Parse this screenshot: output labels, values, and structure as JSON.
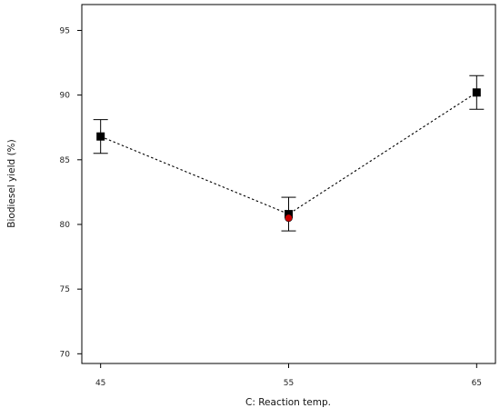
{
  "chart_data": {
    "type": "scatter",
    "title": "",
    "xlabel": "C: Reaction temp.",
    "ylabel": "Biodiesel yield (%)",
    "xlim": [
      44,
      66
    ],
    "ylim": [
      69.25,
      97.0
    ],
    "xticks": [
      45,
      55,
      65
    ],
    "yticks": [
      70,
      75,
      80,
      85,
      90,
      95
    ],
    "grid": false,
    "series": [
      {
        "marker": "square",
        "color": "#000000",
        "line": "dotted",
        "x": [
          45,
          55,
          65
        ],
        "y": [
          86.8,
          80.8,
          90.2
        ],
        "error_low": [
          85.5,
          79.5,
          88.9
        ],
        "error_high": [
          88.1,
          82.1,
          91.5
        ]
      },
      {
        "marker": "circle",
        "color": "#cc0000",
        "line": "none",
        "x": [
          55
        ],
        "y": [
          80.5
        ]
      }
    ]
  }
}
